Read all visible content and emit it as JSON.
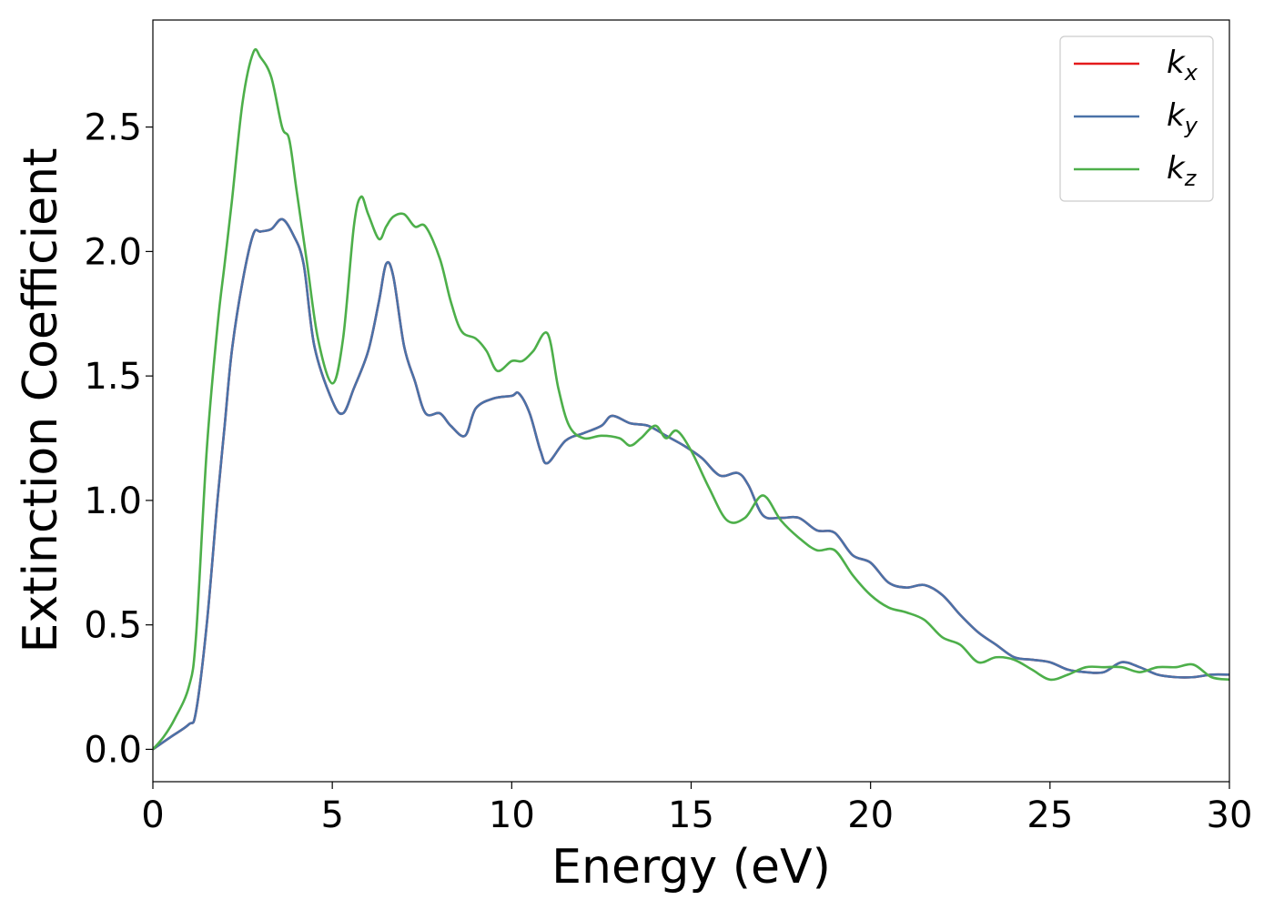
{
  "chart_data": {
    "type": "line",
    "title": "",
    "xlabel": "Energy (eV)",
    "ylabel": "Extinction Coefficient",
    "xlim": [
      0,
      30
    ],
    "ylim": [
      -0.13,
      2.93
    ],
    "xticks": [
      0,
      5,
      10,
      15,
      20,
      25,
      30
    ],
    "xtick_labels": [
      "0",
      "5",
      "10",
      "15",
      "20",
      "25",
      "30"
    ],
    "yticks": [
      0.0,
      0.5,
      1.0,
      1.5,
      2.0,
      2.5
    ],
    "ytick_labels": [
      "0.0",
      "0.5",
      "1.0",
      "1.5",
      "2.0",
      "2.5"
    ],
    "grid": false,
    "legend_position": "top-right",
    "series": [
      {
        "name": "k",
        "subscript": "x",
        "color": "#e41a1c",
        "x": [
          0,
          0.5,
          1,
          1.2,
          1.5,
          1.8,
          2,
          2.2,
          2.5,
          2.8,
          3,
          3.3,
          3.6,
          3.9,
          4.2,
          4.5,
          5,
          5.3,
          5.6,
          6,
          6.3,
          6.5,
          6.7,
          7,
          7.3,
          7.6,
          8,
          8.3,
          8.7,
          9,
          9.5,
          10,
          10.2,
          10.5,
          10.8,
          11,
          11.5,
          12,
          12.5,
          12.8,
          13.3,
          13.8,
          14.3,
          14.8,
          15.3,
          15.8,
          16.3,
          16.6,
          17,
          17.5,
          18,
          18.5,
          19,
          19.5,
          20,
          20.5,
          21,
          21.5,
          22,
          22.5,
          23,
          23.5,
          24,
          24.5,
          25,
          25.5,
          26,
          26.5,
          27,
          27.5,
          28,
          28.5,
          29,
          29.5,
          30
        ],
        "y": [
          0.0,
          0.05,
          0.1,
          0.15,
          0.5,
          1.0,
          1.3,
          1.6,
          1.88,
          2.07,
          2.08,
          2.09,
          2.13,
          2.07,
          1.95,
          1.62,
          1.4,
          1.35,
          1.45,
          1.6,
          1.8,
          1.95,
          1.9,
          1.62,
          1.48,
          1.35,
          1.35,
          1.3,
          1.26,
          1.37,
          1.41,
          1.42,
          1.43,
          1.35,
          1.2,
          1.15,
          1.24,
          1.27,
          1.3,
          1.34,
          1.31,
          1.3,
          1.26,
          1.22,
          1.17,
          1.1,
          1.11,
          1.06,
          0.94,
          0.93,
          0.93,
          0.88,
          0.87,
          0.78,
          0.75,
          0.67,
          0.65,
          0.66,
          0.62,
          0.54,
          0.47,
          0.42,
          0.37,
          0.36,
          0.35,
          0.32,
          0.31,
          0.31,
          0.35,
          0.33,
          0.3,
          0.29,
          0.29,
          0.3,
          0.3
        ]
      },
      {
        "name": "k",
        "subscript": "y",
        "color": "#4a72a8",
        "x": [
          0,
          0.5,
          1,
          1.2,
          1.5,
          1.8,
          2,
          2.2,
          2.5,
          2.8,
          3,
          3.3,
          3.6,
          3.9,
          4.2,
          4.5,
          5,
          5.3,
          5.6,
          6,
          6.3,
          6.5,
          6.7,
          7,
          7.3,
          7.6,
          8,
          8.3,
          8.7,
          9,
          9.5,
          10,
          10.2,
          10.5,
          10.8,
          11,
          11.5,
          12,
          12.5,
          12.8,
          13.3,
          13.8,
          14.3,
          14.8,
          15.3,
          15.8,
          16.3,
          16.6,
          17,
          17.5,
          18,
          18.5,
          19,
          19.5,
          20,
          20.5,
          21,
          21.5,
          22,
          22.5,
          23,
          23.5,
          24,
          24.5,
          25,
          25.5,
          26,
          26.5,
          27,
          27.5,
          28,
          28.5,
          29,
          29.5,
          30
        ],
        "y": [
          0.0,
          0.05,
          0.1,
          0.15,
          0.5,
          1.0,
          1.3,
          1.6,
          1.88,
          2.07,
          2.08,
          2.09,
          2.13,
          2.07,
          1.95,
          1.62,
          1.4,
          1.35,
          1.45,
          1.6,
          1.8,
          1.95,
          1.9,
          1.62,
          1.48,
          1.35,
          1.35,
          1.3,
          1.26,
          1.37,
          1.41,
          1.42,
          1.43,
          1.35,
          1.2,
          1.15,
          1.24,
          1.27,
          1.3,
          1.34,
          1.31,
          1.3,
          1.26,
          1.22,
          1.17,
          1.1,
          1.11,
          1.06,
          0.94,
          0.93,
          0.93,
          0.88,
          0.87,
          0.78,
          0.75,
          0.67,
          0.65,
          0.66,
          0.62,
          0.54,
          0.47,
          0.42,
          0.37,
          0.36,
          0.35,
          0.32,
          0.31,
          0.31,
          0.35,
          0.33,
          0.3,
          0.29,
          0.29,
          0.3,
          0.3
        ]
      },
      {
        "name": "k",
        "subscript": "z",
        "color": "#4daf4a",
        "x": [
          0,
          0.3,
          0.6,
          1,
          1.2,
          1.5,
          1.8,
          2,
          2.2,
          2.5,
          2.8,
          3,
          3.3,
          3.6,
          3.8,
          4,
          4.3,
          4.6,
          5,
          5.3,
          5.6,
          5.8,
          6,
          6.3,
          6.5,
          6.7,
          7,
          7.3,
          7.6,
          8,
          8.3,
          8.6,
          9,
          9.3,
          9.6,
          10,
          10.3,
          10.6,
          11,
          11.3,
          11.6,
          12,
          12.5,
          13,
          13.3,
          13.6,
          14,
          14.3,
          14.6,
          15,
          15.5,
          16,
          16.5,
          17,
          17.5,
          18,
          18.5,
          19,
          19.5,
          20,
          20.5,
          21,
          21.5,
          22,
          22.5,
          23,
          23.5,
          24,
          24.5,
          25,
          25.5,
          26,
          26.5,
          27,
          27.5,
          28,
          28.5,
          29,
          29.5,
          30
        ],
        "y": [
          0.0,
          0.05,
          0.12,
          0.25,
          0.45,
          1.2,
          1.7,
          1.95,
          2.2,
          2.6,
          2.8,
          2.78,
          2.7,
          2.5,
          2.45,
          2.25,
          1.95,
          1.65,
          1.47,
          1.65,
          2.1,
          2.22,
          2.15,
          2.05,
          2.1,
          2.14,
          2.15,
          2.1,
          2.1,
          1.97,
          1.8,
          1.68,
          1.65,
          1.6,
          1.52,
          1.56,
          1.56,
          1.6,
          1.67,
          1.45,
          1.3,
          1.25,
          1.26,
          1.25,
          1.22,
          1.25,
          1.3,
          1.25,
          1.28,
          1.2,
          1.05,
          0.92,
          0.93,
          1.02,
          0.92,
          0.85,
          0.8,
          0.8,
          0.7,
          0.62,
          0.57,
          0.55,
          0.52,
          0.45,
          0.42,
          0.35,
          0.37,
          0.36,
          0.32,
          0.28,
          0.3,
          0.33,
          0.33,
          0.33,
          0.31,
          0.33,
          0.33,
          0.34,
          0.29,
          0.28
        ]
      }
    ]
  }
}
